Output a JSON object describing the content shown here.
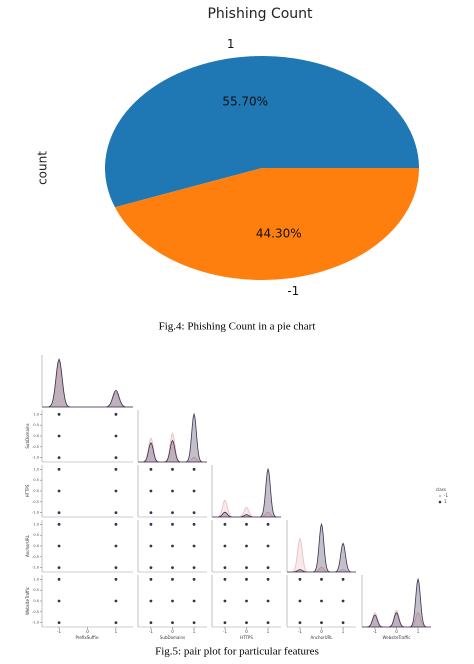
{
  "chart_data": [
    {
      "type": "pie",
      "title": "Phishing Count",
      "ylabel": "count",
      "categories": [
        "1",
        "-1"
      ],
      "values": [
        55.7,
        44.3
      ],
      "value_labels": [
        "55.70%",
        "44.30%"
      ],
      "colors": [
        "#1f77b4",
        "#ff7f0e"
      ]
    },
    {
      "type": "pairplot",
      "variables": [
        {
          "name": "PrefixSuffix-",
          "levels": [
            -1,
            1
          ],
          "density": {
            "-1": [
              0.95,
              0.3
            ],
            "1": [
              1.0,
              0.35
            ]
          }
        },
        {
          "name": "SubDomains",
          "levels": [
            -1,
            0,
            1
          ],
          "density": {
            "-1": [
              0.5,
              0.6,
              0.1
            ],
            "1": [
              0.4,
              0.45,
              1.0
            ]
          }
        },
        {
          "name": "HTTPS",
          "levels": [
            -1,
            0,
            1
          ],
          "density": {
            "-1": [
              0.35,
              0.2,
              0.1
            ],
            "1": [
              0.1,
              0.05,
              1.0
            ]
          }
        },
        {
          "name": "AnchorURL",
          "levels": [
            -1,
            0,
            1
          ],
          "density": {
            "-1": [
              0.7,
              0.1,
              0.05
            ],
            "1": [
              0.05,
              1.0,
              0.6
            ]
          }
        },
        {
          "name": "WebsiteTraffic",
          "levels": [
            -1,
            0,
            1
          ],
          "density": {
            "-1": [
              0.3,
              0.35,
              0.3
            ],
            "1": [
              0.25,
              0.3,
              1.0
            ]
          }
        }
      ],
      "xlim": [
        -1.6,
        1.6
      ],
      "ylim": [
        -1.2,
        1.2
      ],
      "xticks": [
        -1,
        0,
        1
      ],
      "yticks": [
        {
          "value": -1,
          "label": "-1.0"
        },
        {
          "value": -0.5,
          "label": "-0.5"
        },
        {
          "value": 0,
          "label": "0.0"
        },
        {
          "value": 0.5,
          "label": "0.5"
        },
        {
          "value": 1,
          "label": "1.0"
        }
      ],
      "legend_title": "class",
      "series": [
        {
          "name": "-1",
          "color": "#e9b9bd"
        },
        {
          "name": "1",
          "color": "#3b3050"
        }
      ]
    }
  ],
  "captions": [
    "Fig.4: Phishing Count in a pie chart",
    "Fig.5: pair plot for particular features"
  ]
}
